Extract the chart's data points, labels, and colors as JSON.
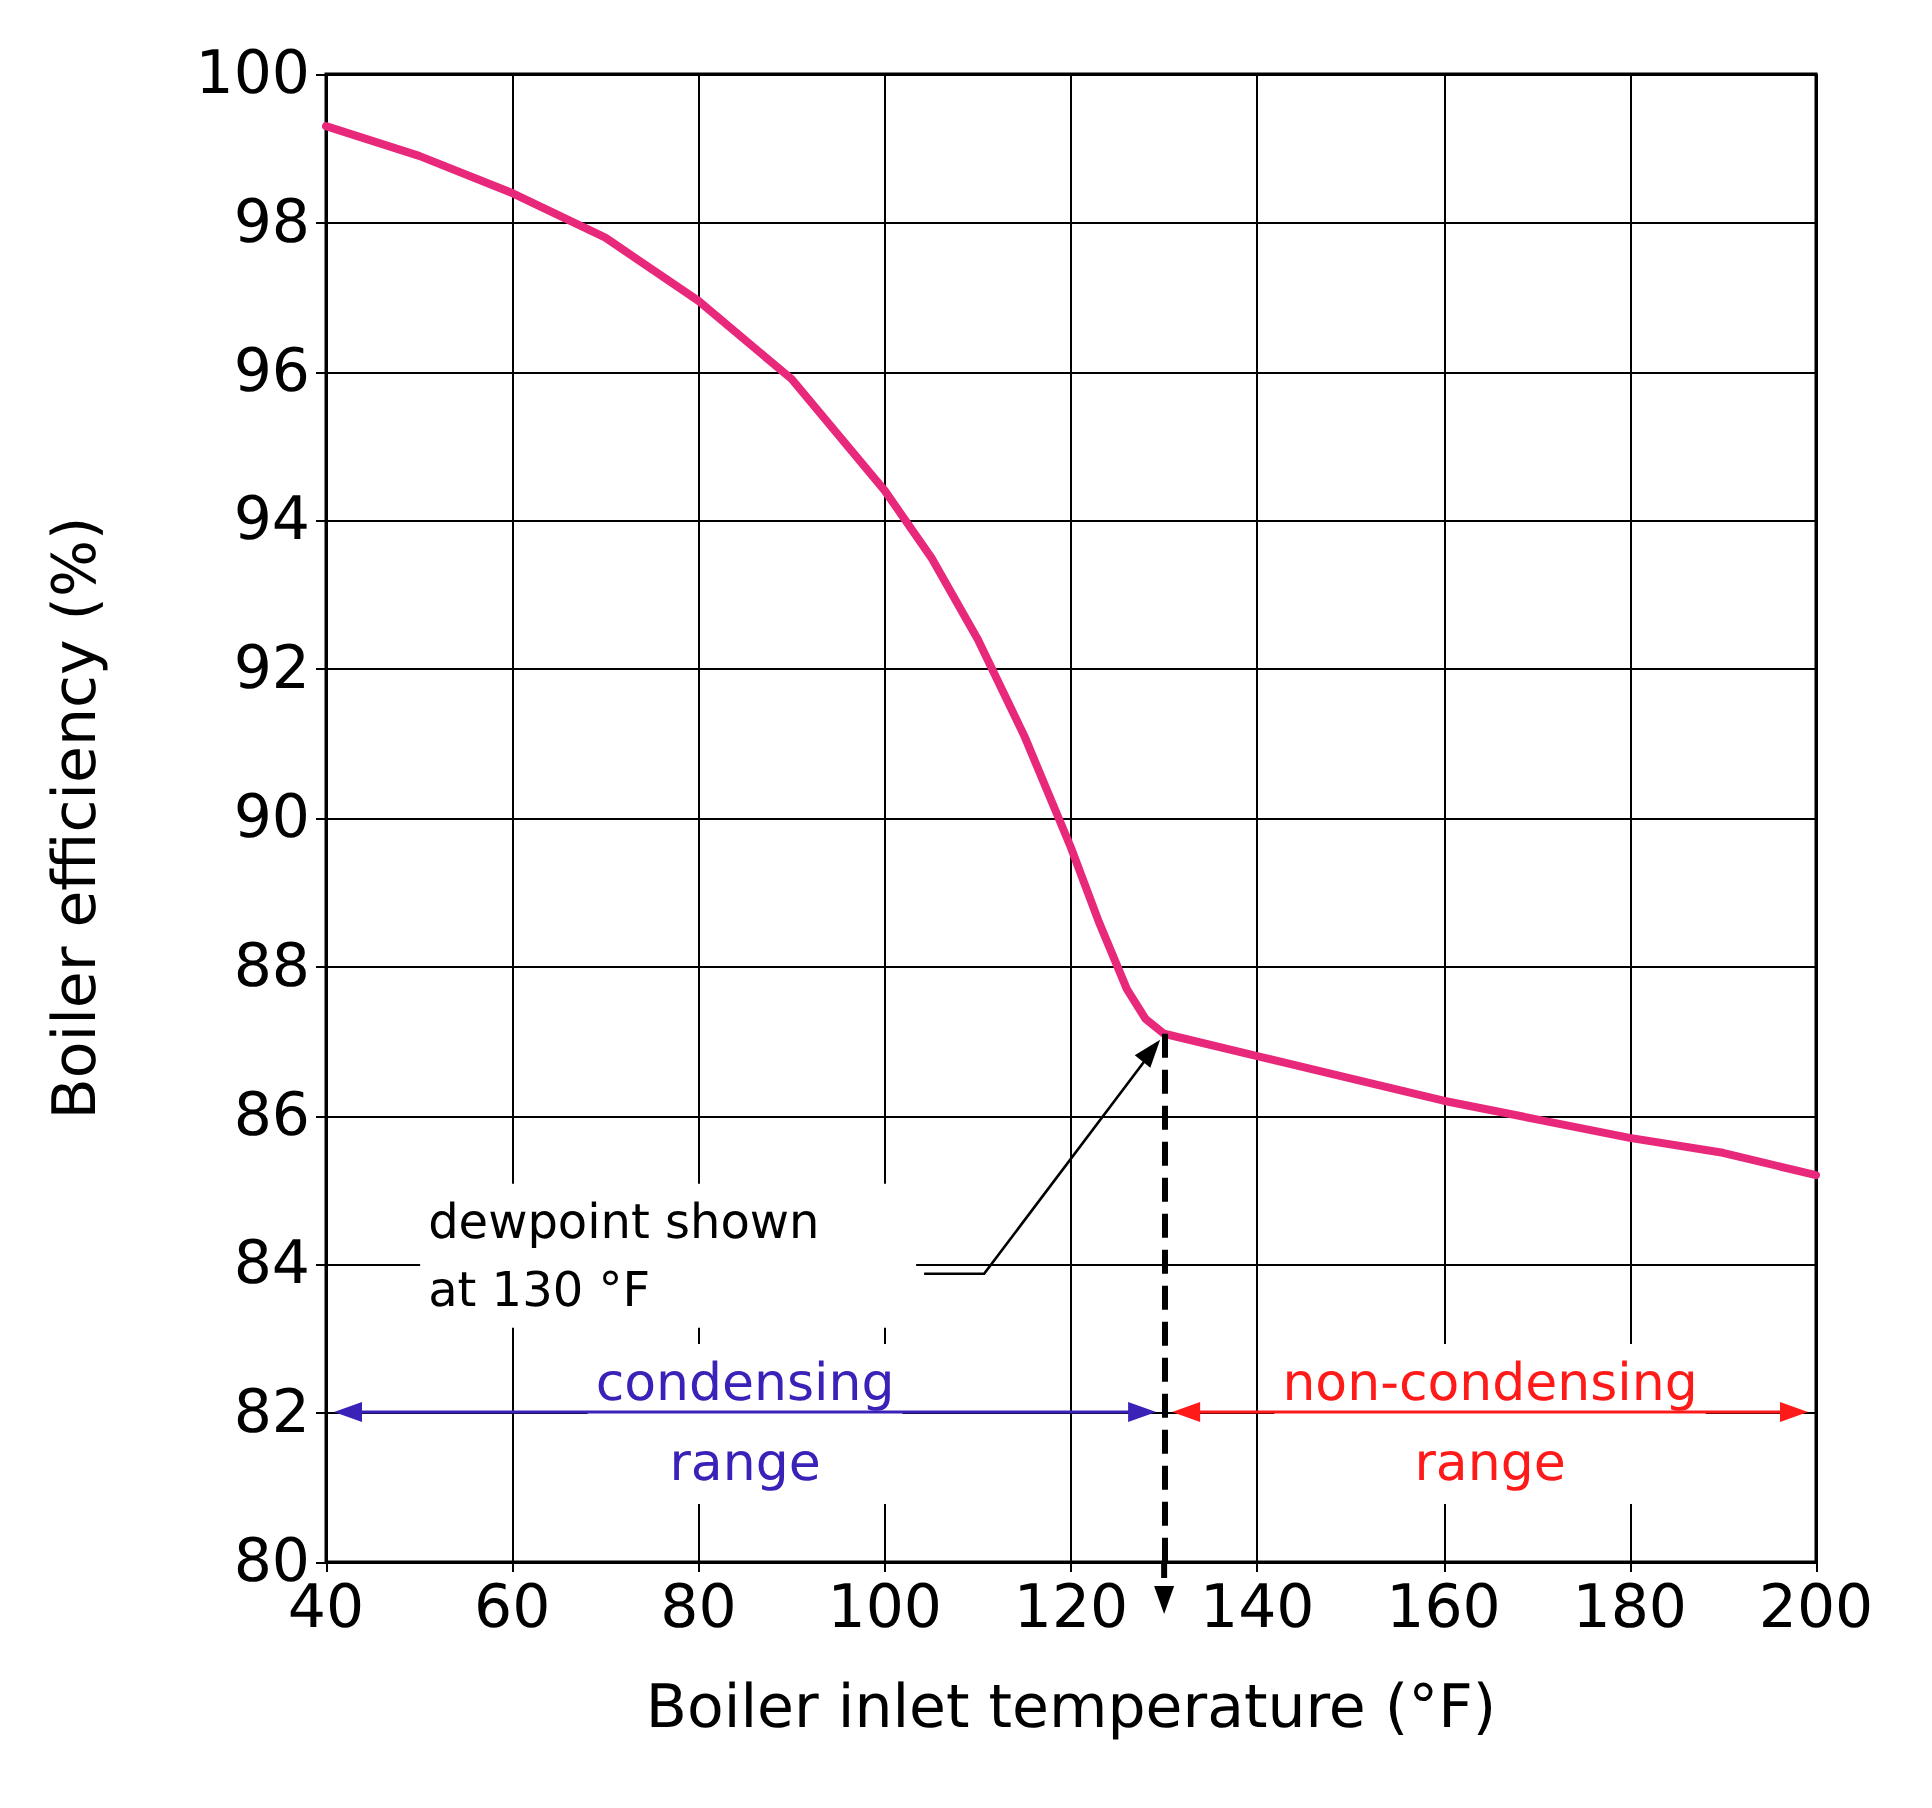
{
  "chart_data": {
    "type": "line",
    "xlabel": "Boiler inlet temperature (°F)",
    "ylabel": "Boiler efficiency (%)",
    "x": [
      40,
      50,
      60,
      70,
      80,
      90,
      100,
      105,
      110,
      115,
      120,
      123,
      126,
      128,
      130,
      140,
      150,
      160,
      170,
      180,
      190,
      200
    ],
    "series": [
      {
        "color": "#e8287a",
        "values": [
          99.3,
          98.9,
          98.4,
          97.8,
          96.95,
          95.9,
          94.4,
          93.5,
          92.4,
          91.1,
          89.6,
          88.6,
          87.7,
          87.3,
          87.1,
          86.8,
          86.5,
          86.2,
          85.95,
          85.7,
          85.5,
          85.2
        ]
      }
    ],
    "xlim": [
      40,
      200
    ],
    "xticks": [
      40,
      60,
      80,
      100,
      120,
      140,
      160,
      180,
      200
    ],
    "ylim": [
      80,
      100
    ],
    "yticks": [
      80,
      82,
      84,
      86,
      88,
      90,
      92,
      94,
      96,
      98,
      100
    ],
    "grid": true,
    "marker": "none",
    "line_style": "solid",
    "ref_lines": [
      {
        "axis": "x",
        "value": 130,
        "color": "#000000",
        "line_style": "dashed"
      }
    ],
    "annotations": [
      "dewpoint shown at 130 °F",
      "condensing range",
      "non-condensing range"
    ]
  }
}
